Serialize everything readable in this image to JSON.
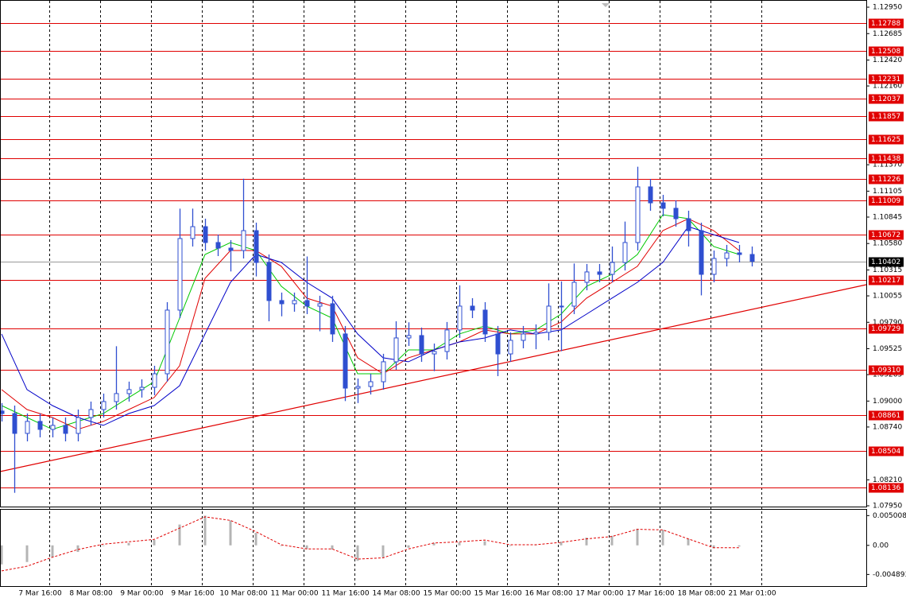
{
  "chart_data": [
    {
      "type": "candlestick",
      "xlim": [
        -0.5,
        272
      ],
      "ylim": [
        1.07942,
        1.13022
      ],
      "xticks": [
        {
          "value": 15,
          "label": "7 Mar 16:00"
        },
        {
          "value": 31,
          "label": "8 Mar 08:00"
        },
        {
          "value": 47,
          "label": "9 Mar 00:00"
        },
        {
          "value": 63,
          "label": "9 Mar 16:00"
        },
        {
          "value": 79,
          "label": "10 Mar 08:00"
        },
        {
          "value": 95,
          "label": "11 Mar 00:00"
        },
        {
          "value": 111,
          "label": "11 Mar 16:00"
        },
        {
          "value": 127,
          "label": "14 Mar 08:00"
        },
        {
          "value": 143,
          "label": "15 Mar 00:00"
        },
        {
          "value": 159,
          "label": "15 Mar 16:00"
        },
        {
          "value": 175,
          "label": "16 Mar 08:00"
        },
        {
          "value": 191,
          "label": "17 Mar 00:00"
        },
        {
          "value": 207,
          "label": "17 Mar 16:00"
        },
        {
          "value": 223,
          "label": "18 Mar 08:00"
        },
        {
          "value": 239,
          "label": "21 Mar 01:00"
        }
      ],
      "yticks": [
        {
          "value": 1.1295,
          "label": "1.12950"
        },
        1.12685,
        {
          "value": 1.1242,
          "label": "1.12420"
        },
        {
          "value": 1.1216,
          "label": "1.12160"
        },
        {
          "value": 1.1137,
          "label": "1.11370"
        },
        1.11105,
        1.10845,
        {
          "value": 1.1058,
          "label": "1.10580"
        },
        1.10315,
        1.10055,
        {
          "value": 1.0979,
          "label": "1.09790"
        },
        1.09525,
        1.09265,
        {
          "value": 1.09,
          "label": "1.09000"
        },
        {
          "value": 1.0874,
          "label": "1.08740"
        },
        {
          "value": 1.0821,
          "label": "1.08210"
        },
        {
          "value": 1.0795,
          "label": "1.07950"
        }
      ],
      "color": "#2f4fd0",
      "x": [
        0,
        4,
        8,
        12,
        16,
        20,
        24,
        28,
        32,
        36,
        40,
        44,
        48,
        52,
        56,
        60,
        64,
        68,
        72,
        76,
        80,
        84,
        88,
        92,
        96,
        100,
        104,
        108,
        112,
        116,
        120,
        124,
        128,
        132,
        136,
        140,
        144,
        148,
        152,
        156,
        160,
        164,
        168,
        172,
        176,
        180,
        184,
        188,
        192,
        196,
        200,
        204,
        208,
        212,
        216,
        220,
        224,
        228,
        232,
        236
      ],
      "open": [
        1.089,
        1.08875,
        1.08676,
        1.08796,
        1.08716,
        1.08756,
        1.08676,
        1.08835,
        1.08915,
        1.08995,
        1.09075,
        1.09115,
        1.09138,
        1.09274,
        1.09912,
        1.1063,
        1.10749,
        1.1059,
        1.10534,
        1.1051,
        1.10709,
        1.1039,
        1.10008,
        1.09976,
        1.10008,
        1.09952,
        1.09976,
        1.09673,
        1.0913,
        1.09146,
        1.09194,
        1.09394,
        1.09633,
        1.09657,
        1.09473,
        1.09497,
        1.09713,
        1.09952,
        1.09912,
        1.09673,
        1.09473,
        1.09609,
        1.09673,
        1.09689,
        1.09952,
        1.09952,
        1.10191,
        1.10295,
        1.10271,
        1.1039,
        1.1059,
        1.11148,
        1.10988,
        1.10933,
        1.10829,
        1.10709,
        1.10271,
        1.1043,
        1.10486,
        1.1047
      ],
      "high": [
        1.0898,
        1.08955,
        1.08876,
        1.08876,
        1.08836,
        1.08836,
        1.08915,
        1.08995,
        1.09075,
        1.0955,
        1.09195,
        1.09218,
        1.09354,
        1.09992,
        1.1093,
        1.1093,
        1.10829,
        1.1067,
        1.10614,
        1.1123,
        1.10789,
        1.1047,
        1.10088,
        1.10088,
        1.1045,
        1.10056,
        1.10056,
        1.09753,
        1.09226,
        1.09274,
        1.09474,
        1.098,
        1.0979,
        1.09737,
        1.09577,
        1.09793,
        1.1016,
        1.10032,
        1.09992,
        1.09753,
        1.09689,
        1.09753,
        1.09769,
        1.1018,
        1.102,
        1.1038,
        1.10375,
        1.10375,
        1.1055,
        1.108,
        1.1135,
        1.11228,
        1.11068,
        1.11013,
        1.10909,
        1.10789,
        1.1051,
        1.10566,
        1.10566,
        1.1055
      ],
      "low": [
        1.08795,
        1.0808,
        1.08596,
        1.08636,
        1.08636,
        1.08596,
        1.08596,
        1.08755,
        1.08835,
        1.08915,
        1.08995,
        1.09035,
        1.09058,
        1.09194,
        1.09832,
        1.1055,
        1.1051,
        1.10454,
        1.103,
        1.1043,
        1.1025,
        1.098,
        1.0985,
        1.09896,
        1.09872,
        1.097,
        1.09593,
        1.09,
        1.0898,
        1.09066,
        1.09114,
        1.09314,
        1.09553,
        1.09393,
        1.093,
        1.09417,
        1.09633,
        1.09832,
        1.09593,
        1.0925,
        1.09393,
        1.09529,
        1.0952,
        1.09609,
        1.095,
        1.09872,
        1.10111,
        1.10191,
        1.10191,
        1.1031,
        1.1051,
        1.10908,
        1.10853,
        1.10749,
        1.1055,
        1.1006,
        1.10191,
        1.1035,
        1.1039,
        1.1035
      ],
      "close": [
        1.08875,
        1.08676,
        1.08796,
        1.08716,
        1.08756,
        1.08676,
        1.08835,
        1.08915,
        1.08995,
        1.09075,
        1.09115,
        1.09138,
        1.09274,
        1.09912,
        1.1063,
        1.10749,
        1.1059,
        1.10534,
        1.1051,
        1.10709,
        1.1039,
        1.10008,
        1.09976,
        1.10008,
        1.09952,
        1.09976,
        1.09673,
        1.0913,
        1.09146,
        1.09194,
        1.09394,
        1.09633,
        1.09657,
        1.09473,
        1.09497,
        1.09713,
        1.09952,
        1.09912,
        1.09673,
        1.09473,
        1.09609,
        1.09673,
        1.09689,
        1.09952,
        1.09952,
        1.10191,
        1.10295,
        1.10271,
        1.1039,
        1.1059,
        1.11148,
        1.10988,
        1.10933,
        1.10829,
        1.10709,
        1.10271,
        1.1043,
        1.10486,
        1.1047,
        1.10402
      ],
      "series": [
        {
          "color": "#00c800",
          "x": [
            0,
            8,
            16,
            24,
            32,
            40,
            48,
            56,
            64,
            72,
            80,
            88,
            96,
            104,
            112,
            120,
            128,
            136,
            144,
            152,
            160,
            168,
            176,
            184,
            192,
            200,
            208,
            216,
            224,
            232
          ],
          "values": [
            1.08955,
            1.08835,
            1.08716,
            1.08796,
            1.08875,
            1.09035,
            1.09194,
            1.09832,
            1.1047,
            1.1059,
            1.1051,
            1.10151,
            1.09952,
            1.09832,
            1.09274,
            1.09274,
            1.09513,
            1.09513,
            1.09673,
            1.09752,
            1.09673,
            1.09713,
            1.09872,
            1.10151,
            1.10271,
            1.1047,
            1.10869,
            1.10829,
            1.1055,
            1.1047
          ]
        },
        {
          "color": "#e00000",
          "x": [
            0,
            8,
            16,
            24,
            32,
            40,
            48,
            56,
            64,
            72,
            80,
            88,
            96,
            104,
            112,
            120,
            128,
            136,
            144,
            152,
            160,
            168,
            176,
            184,
            192,
            200,
            208,
            216,
            224,
            232
          ],
          "values": [
            1.09115,
            1.08915,
            1.08835,
            1.08716,
            1.08796,
            1.08915,
            1.09035,
            1.09354,
            1.10231,
            1.1051,
            1.1051,
            1.10351,
            1.10032,
            1.09952,
            1.09434,
            1.09274,
            1.09434,
            1.09513,
            1.09593,
            1.09713,
            1.09673,
            1.09673,
            1.09792,
            1.10032,
            1.10191,
            1.10351,
            1.10709,
            1.10829,
            1.10709,
            1.1051
          ]
        },
        {
          "color": "#0000c8",
          "x": [
            0,
            8,
            16,
            24,
            32,
            40,
            48,
            56,
            64,
            72,
            80,
            88,
            96,
            104,
            112,
            120,
            128,
            136,
            144,
            152,
            160,
            168,
            176,
            184,
            192,
            200,
            208,
            216,
            224,
            232
          ],
          "values": [
            1.09673,
            1.09115,
            1.08955,
            1.08835,
            1.08756,
            1.08875,
            1.08955,
            1.09154,
            1.09673,
            1.10191,
            1.1047,
            1.1039,
            1.10191,
            1.10032,
            1.09673,
            1.09434,
            1.09394,
            1.09513,
            1.09593,
            1.09633,
            1.09713,
            1.09673,
            1.09713,
            1.09872,
            1.10032,
            1.10191,
            1.1039,
            1.10749,
            1.10669,
            1.1059
          ]
        }
      ],
      "levels": [
        1.12788,
        1.12508,
        1.12231,
        1.12037,
        1.11857,
        1.11625,
        1.11438,
        1.11226,
        1.11009,
        1.10672,
        1.10217,
        1.09729,
        {
          "value": 1.0931,
          "label": "1.09310"
        },
        1.08861,
        1.08504,
        1.08136
      ],
      "level_color": "#e00000",
      "current_price": 1.10402,
      "trendline": {
        "x": [
          -0.5,
          272
        ],
        "values": [
          1.08293,
          1.10167
        ],
        "color": "#e00000"
      }
    },
    {
      "type": "macd",
      "ylim": [
        -0.00685,
        0.00599
      ],
      "yticks": [
        0.005008,
        {
          "value": 0,
          "label": "0.00"
        },
        -0.004893
      ],
      "x": [
        0,
        8,
        16,
        24,
        32,
        40,
        48,
        56,
        64,
        72,
        80,
        88,
        96,
        104,
        112,
        120,
        128,
        136,
        144,
        152,
        160,
        168,
        176,
        184,
        192,
        200,
        208,
        216,
        224,
        232
      ],
      "histogram": {
        "color": "#b4b4b4",
        "values": [
          -0.0032,
          -0.0028,
          -0.002,
          -0.0011,
          -0.0001,
          0.0004,
          0.0009,
          0.0035,
          0.005,
          0.0042,
          0.0021,
          -0.0001,
          -0.0006,
          -0.0007,
          -0.0026,
          -0.002,
          -0.0004,
          0.0004,
          0.0005,
          0.0007,
          -0.0001,
          0.0001,
          0.0006,
          0.0013,
          0.0016,
          0.0028,
          0.0026,
          0.0011,
          -0.0005,
          -0.0002
        ]
      },
      "signal": {
        "color": "#e00000",
        "values": [
          -0.0043,
          -0.0035,
          -0.002,
          -0.0007,
          0.0002,
          0.0006,
          0.001,
          0.0029,
          0.0048,
          0.0042,
          0.0023,
          0.0001,
          -0.0006,
          -0.0006,
          -0.0023,
          -0.0021,
          -0.0006,
          0.0004,
          0.0006,
          0.0009,
          0.0001,
          0.0001,
          0.0005,
          0.0011,
          0.0015,
          0.0027,
          0.0026,
          0.0011,
          -0.0004,
          -0.0004
        ]
      }
    }
  ]
}
